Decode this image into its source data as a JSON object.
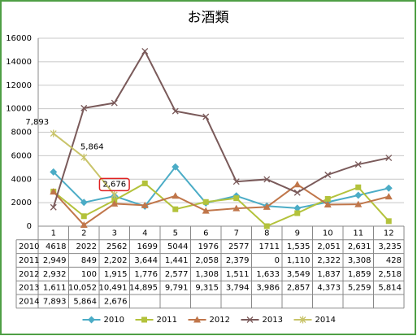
{
  "chart_data": {
    "type": "line",
    "title": "お酒類",
    "categories": [
      "1",
      "2",
      "3",
      "4",
      "5",
      "6",
      "7",
      "8",
      "9",
      "10",
      "11",
      "12"
    ],
    "ylim": [
      0,
      16000
    ],
    "yticks": [
      0,
      2000,
      4000,
      6000,
      8000,
      10000,
      12000,
      14000,
      16000
    ],
    "grid": true,
    "legend": "bottom",
    "series": [
      {
        "name": "2010",
        "color": "#4bacc6",
        "marker": "diamond",
        "values": [
          4618,
          2022,
          2562,
          1699,
          5044,
          1976,
          2577,
          1711,
          1535,
          2051,
          2631,
          3235
        ],
        "value_labels": [
          "4618",
          "2022",
          "2562",
          "1699",
          "5044",
          "1976",
          "2577",
          "1711",
          "1,535",
          "2,051",
          "2,631",
          "3,235"
        ]
      },
      {
        "name": "2011",
        "color": "#b3c23b",
        "marker": "square",
        "values": [
          2949,
          849,
          2202,
          3644,
          1441,
          2058,
          2379,
          0,
          1110,
          2322,
          3308,
          428
        ],
        "value_labels": [
          "2,949",
          "849",
          "2,202",
          "3,644",
          "1,441",
          "2,058",
          "2,379",
          "0",
          "1,110",
          "2,322",
          "3,308",
          "428"
        ]
      },
      {
        "name": "2012",
        "color": "#c0764a",
        "marker": "triangle",
        "values": [
          2932,
          100,
          1915,
          1776,
          2577,
          1308,
          1511,
          1633,
          3549,
          1837,
          1859,
          2518
        ],
        "value_labels": [
          "2,932",
          "100",
          "1,915",
          "1,776",
          "2,577",
          "1,308",
          "1,511",
          "1,633",
          "3,549",
          "1,837",
          "1,859",
          "2,518"
        ]
      },
      {
        "name": "2013",
        "color": "#7a5a5a",
        "marker": "x",
        "values": [
          1611,
          10052,
          10491,
          14895,
          9791,
          9315,
          3794,
          3986,
          2857,
          4373,
          5259,
          5814
        ],
        "value_labels": [
          "1,611",
          "10,052",
          "10,491",
          "14,895",
          "9,791",
          "9,315",
          "3,794",
          "3,986",
          "2,857",
          "4,373",
          "5,259",
          "5,814"
        ]
      },
      {
        "name": "2014",
        "color": "#c9c46a",
        "marker": "star",
        "values": [
          7893,
          5864,
          2676,
          null,
          null,
          null,
          null,
          null,
          null,
          null,
          null,
          null
        ],
        "value_labels": [
          "7,893",
          "5,864",
          "2,676",
          null,
          null,
          null,
          null,
          null,
          null,
          null,
          null,
          null
        ],
        "data_labels": true
      }
    ]
  }
}
